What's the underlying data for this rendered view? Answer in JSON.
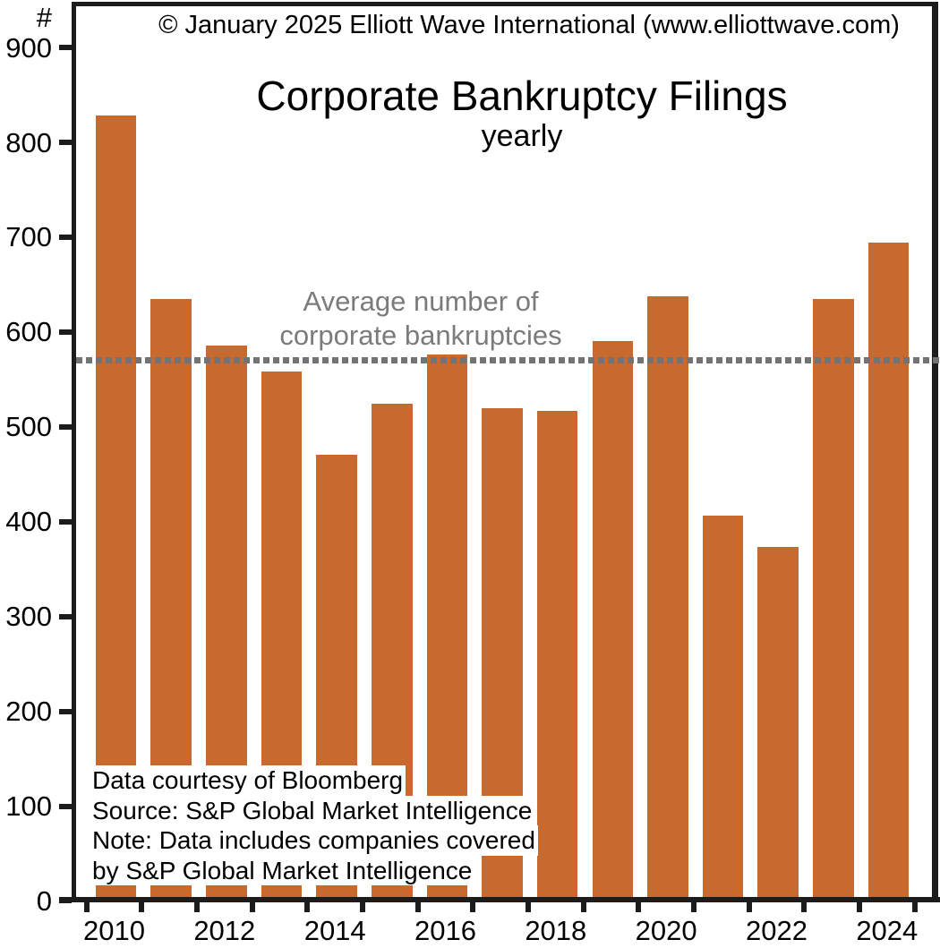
{
  "copyright": "© January 2025 Elliott Wave International (www.elliottwave.com)",
  "chart_data": {
    "type": "bar",
    "title": "Corporate Bankruptcy Filings",
    "subtitle": "yearly",
    "ylabel": "#",
    "categories": [
      2010,
      2011,
      2012,
      2013,
      2014,
      2015,
      2016,
      2017,
      2018,
      2019,
      2020,
      2021,
      2022,
      2023,
      2024
    ],
    "values": [
      828,
      635,
      586,
      558,
      471,
      524,
      576,
      520,
      517,
      590,
      638,
      406,
      373,
      635,
      694
    ],
    "y_ticks": [
      0,
      100,
      200,
      300,
      400,
      500,
      600,
      700,
      800,
      900
    ],
    "x_tick_labels": [
      "2010",
      "2012",
      "2014",
      "2016",
      "2018",
      "2020",
      "2022",
      "2024"
    ],
    "ylim": [
      0,
      950
    ],
    "grid": false,
    "legend": "none",
    "bar_color": "#C8692F",
    "average_line": {
      "value": 570,
      "style": "dashed",
      "color": "#737373",
      "label": "Average number of corporate bankruptcies"
    }
  },
  "annotation": {
    "line1": "Average number of",
    "line2": "corporate bankruptcies"
  },
  "footnote": {
    "lines": [
      "Data courtesy of Bloomberg",
      "Source: S&P Global Market Intelligence",
      "Note: Data includes companies covered",
      "by S&P Global Market Intelligence"
    ]
  }
}
